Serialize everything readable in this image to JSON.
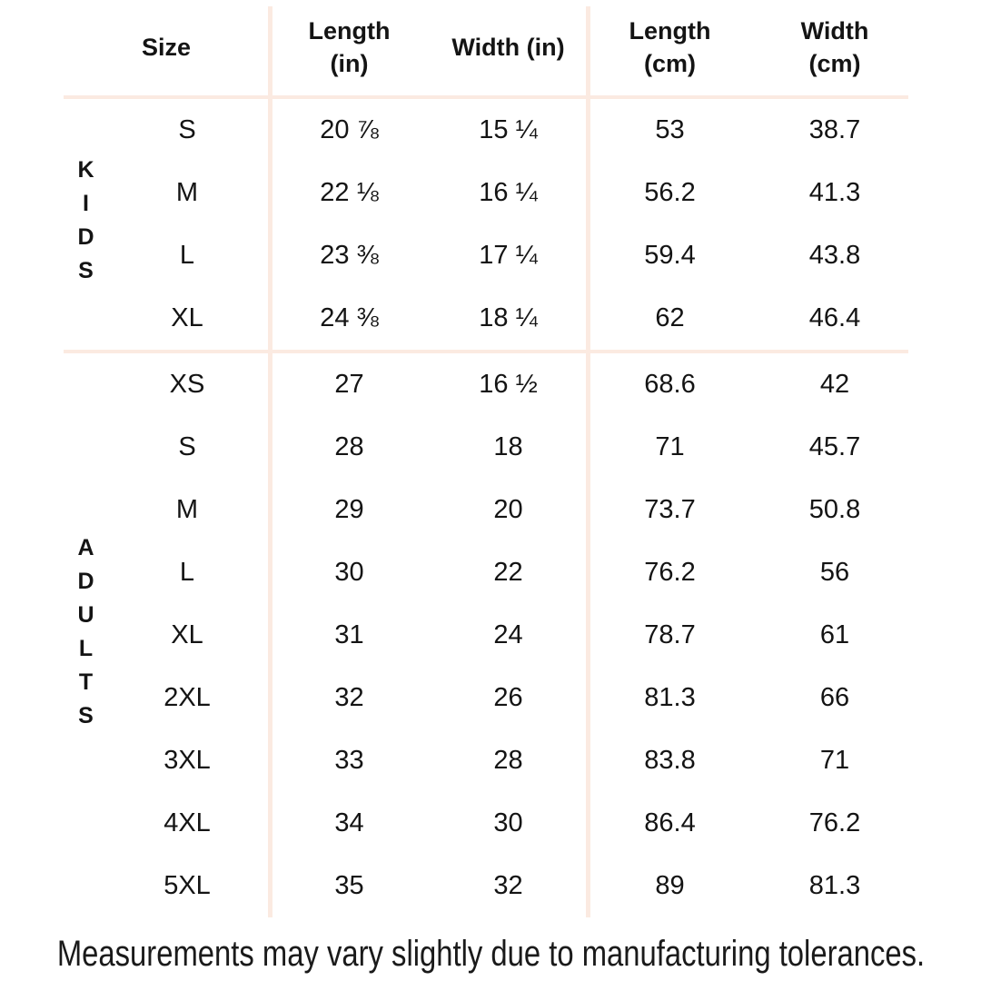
{
  "chart_data": {
    "type": "table",
    "columns": [
      "Size",
      "Length (in)",
      "Width (in)",
      "Length (cm)",
      "Width (cm)"
    ],
    "column_display": [
      "Size",
      "Length\n(in)",
      "Width (in)",
      "Length\n(cm)",
      "Width\n(cm)"
    ],
    "row_groups": [
      {
        "label": "KIDS",
        "rows": [
          [
            "S",
            "20 ⅞",
            "15 ¼",
            "53",
            "38.7"
          ],
          [
            "M",
            "22 ⅛",
            "16 ¼",
            "56.2",
            "41.3"
          ],
          [
            "L",
            "23 ⅜",
            "17 ¼",
            "59.4",
            "43.8"
          ],
          [
            "XL",
            "24 ⅜",
            "18 ¼",
            "62",
            "46.4"
          ]
        ]
      },
      {
        "label": "ADULTS",
        "rows": [
          [
            "XS",
            "27",
            "16 ½",
            "68.6",
            "42"
          ],
          [
            "S",
            "28",
            "18",
            "71",
            "45.7"
          ],
          [
            "M",
            "29",
            "20",
            "73.7",
            "50.8"
          ],
          [
            "L",
            "30",
            "22",
            "76.2",
            "56"
          ],
          [
            "XL",
            "31",
            "24",
            "78.7",
            "61"
          ],
          [
            "2XL",
            "32",
            "26",
            "81.3",
            "66"
          ],
          [
            "3XL",
            "33",
            "28",
            "83.8",
            "71"
          ],
          [
            "4XL",
            "34",
            "30",
            "86.4",
            "76.2"
          ],
          [
            "5XL",
            "35",
            "32",
            "89",
            "81.3"
          ]
        ]
      }
    ],
    "footnote": "Measurements may vary slightly due to manufacturing tolerances."
  },
  "colors": {
    "background": "#ffffff",
    "divider": "#fbeae1",
    "text": "#141414"
  }
}
